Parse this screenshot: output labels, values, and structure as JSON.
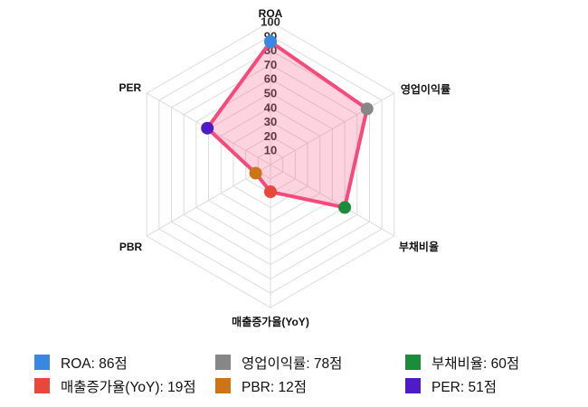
{
  "chart_data": {
    "type": "radar",
    "axes": [
      "ROA",
      "영업이익률",
      "부채비율",
      "매출증가율(YoY)",
      "PBR",
      "PER"
    ],
    "values": [
      86,
      78,
      60,
      19,
      12,
      51
    ],
    "unit": "점",
    "scale_max": 100,
    "ticks": [
      10,
      20,
      30,
      40,
      50,
      60,
      70,
      80,
      90,
      100
    ],
    "point_colors": [
      "#3A87E2",
      "#878787",
      "#1B8C3A",
      "#E8483A",
      "#CC7517",
      "#4E1BC6"
    ],
    "line_color": "#F8497B",
    "fill_color": "rgba(248,73,123,0.24)",
    "grid_color": "#DCDCDC",
    "grid": true,
    "legend_position": "bottom"
  },
  "legend": {
    "items": [
      {
        "label": "ROA: 86점",
        "color": "#3A87E2"
      },
      {
        "label": "영업이익률: 78점",
        "color": "#878787"
      },
      {
        "label": "부채비율: 60점",
        "color": "#1B8C3A"
      },
      {
        "label": "매출증가율(YoY): 19점",
        "color": "#E8483A"
      },
      {
        "label": "PBR: 12점",
        "color": "#CC7517"
      },
      {
        "label": "PER: 51점",
        "color": "#4E1BC6"
      }
    ]
  }
}
